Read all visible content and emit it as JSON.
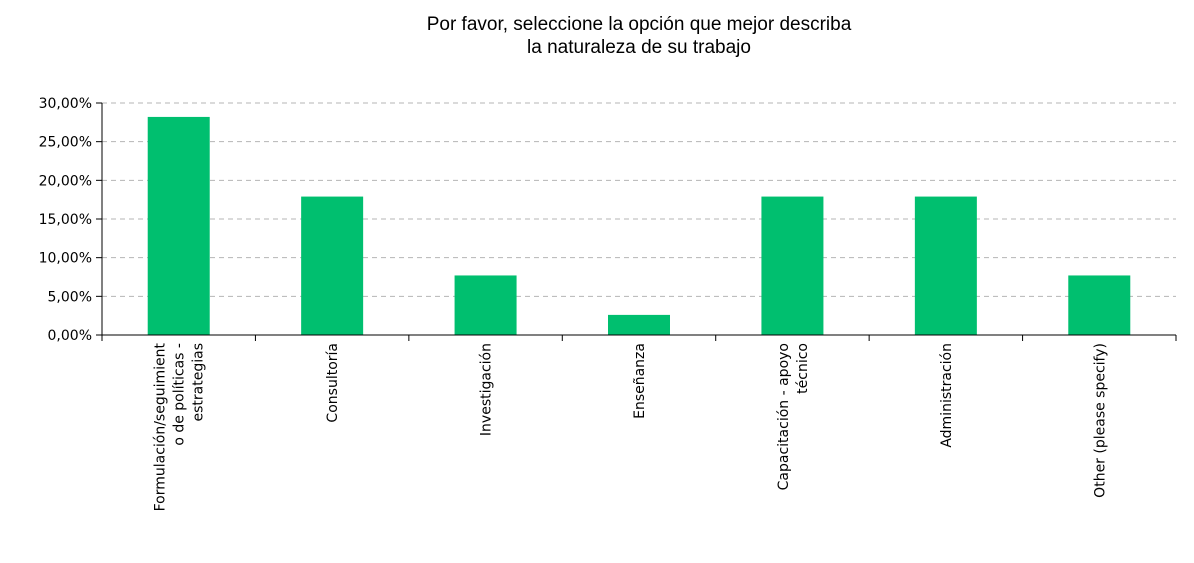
{
  "chart_data": {
    "type": "bar",
    "title_lines": [
      "Por favor, seleccione la opción que mejor describa",
      "la naturaleza de su trabajo"
    ],
    "categories": [
      [
        "Formulación/seguimient",
        "o de políticas -",
        "estrategias"
      ],
      [
        "Consultoría"
      ],
      [
        "Investigación"
      ],
      [
        "Enseñanza"
      ],
      [
        "Capacitación - apoyo",
        "técnico"
      ],
      [
        "Administración"
      ],
      [
        "Other (please specify)"
      ]
    ],
    "values": [
      28.2,
      17.9,
      7.7,
      2.6,
      17.9,
      17.9,
      7.7
    ],
    "y_ticks": [
      "0,00%",
      "5,00%",
      "10,00%",
      "15,00%",
      "20,00%",
      "25,00%",
      "30,00%"
    ],
    "ylim": [
      0,
      30
    ],
    "grid": true,
    "bar_color": "#00bf6f",
    "grid_color": "#b5b5b5",
    "xlabel": "",
    "ylabel": ""
  }
}
